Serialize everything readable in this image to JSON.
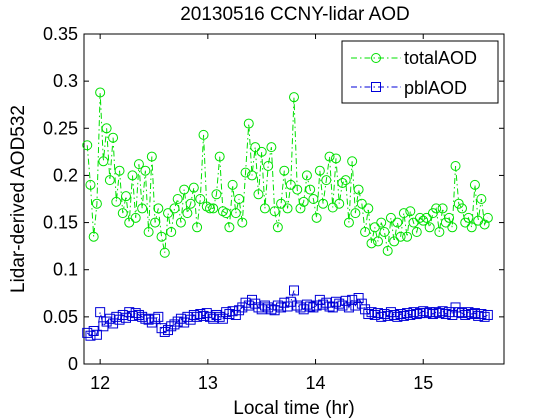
{
  "chart_data": {
    "type": "line",
    "title": "20130516 CCNY-lidar AOD",
    "xlabel": "Local time (hr)",
    "ylabel": "Lidar-derived AOD532",
    "xlim": [
      11.85,
      15.75
    ],
    "ylim": [
      0,
      0.35
    ],
    "x_ticks": [
      12,
      13,
      14,
      15
    ],
    "x_tick_labels": [
      "12",
      "13",
      "14",
      "15"
    ],
    "y_ticks": [
      0,
      0.05,
      0.1,
      0.15,
      0.2,
      0.25,
      0.3,
      0.35
    ],
    "y_tick_labels": [
      "0",
      "0.05",
      "0.1",
      "0.15",
      "0.2",
      "0.25",
      "0.3",
      "0.35"
    ],
    "grid": false,
    "legend_position": "top-right",
    "series": [
      {
        "name": "totalAOD",
        "color": "#00e000",
        "marker": "circle",
        "line_style": "dash-dot",
        "x": [
          11.88,
          11.91,
          11.94,
          11.97,
          12.0,
          12.03,
          12.06,
          12.09,
          12.12,
          12.15,
          12.18,
          12.21,
          12.24,
          12.27,
          12.3,
          12.33,
          12.36,
          12.39,
          12.42,
          12.45,
          12.48,
          12.51,
          12.54,
          12.57,
          12.6,
          12.63,
          12.66,
          12.69,
          12.72,
          12.75,
          12.78,
          12.81,
          12.84,
          12.87,
          12.9,
          12.93,
          12.96,
          12.99,
          13.02,
          13.05,
          13.08,
          13.11,
          13.14,
          13.17,
          13.2,
          13.23,
          13.26,
          13.29,
          13.32,
          13.35,
          13.38,
          13.41,
          13.44,
          13.47,
          13.5,
          13.53,
          13.56,
          13.59,
          13.62,
          13.65,
          13.68,
          13.71,
          13.74,
          13.77,
          13.8,
          13.83,
          13.86,
          13.89,
          13.92,
          13.95,
          13.98,
          14.01,
          14.04,
          14.07,
          14.1,
          14.13,
          14.16,
          14.19,
          14.22,
          14.25,
          14.28,
          14.31,
          14.34,
          14.37,
          14.4,
          14.43,
          14.46,
          14.49,
          14.52,
          14.55,
          14.58,
          14.61,
          14.64,
          14.67,
          14.7,
          14.73,
          14.76,
          14.79,
          14.82,
          14.85,
          14.88,
          14.91,
          14.94,
          14.97,
          15.0,
          15.03,
          15.06,
          15.09,
          15.12,
          15.15,
          15.18,
          15.21,
          15.24,
          15.27,
          15.3,
          15.33,
          15.36,
          15.39,
          15.42,
          15.45,
          15.48,
          15.51,
          15.54,
          15.57,
          15.6
        ],
        "values": [
          0.232,
          0.19,
          0.135,
          0.17,
          0.288,
          0.215,
          0.25,
          0.195,
          0.24,
          0.172,
          0.205,
          0.16,
          0.178,
          0.15,
          0.2,
          0.155,
          0.212,
          0.165,
          0.205,
          0.14,
          0.22,
          0.15,
          0.165,
          0.135,
          0.118,
          0.16,
          0.14,
          0.165,
          0.175,
          0.15,
          0.185,
          0.16,
          0.17,
          0.187,
          0.145,
          0.175,
          0.243,
          0.167,
          0.165,
          0.165,
          0.18,
          0.22,
          0.162,
          0.16,
          0.145,
          0.19,
          0.16,
          0.175,
          0.15,
          0.203,
          0.255,
          0.2,
          0.23,
          0.18,
          0.225,
          0.165,
          0.21,
          0.23,
          0.162,
          0.145,
          0.17,
          0.205,
          0.165,
          0.19,
          0.283,
          0.185,
          0.165,
          0.172,
          0.2,
          0.185,
          0.175,
          0.155,
          0.205,
          0.17,
          0.195,
          0.22,
          0.166,
          0.218,
          0.17,
          0.192,
          0.195,
          0.15,
          0.215,
          0.16,
          0.185,
          0.17,
          0.14,
          0.165,
          0.128,
          0.145,
          0.13,
          0.15,
          0.14,
          0.12,
          0.155,
          0.13,
          0.15,
          0.135,
          0.16,
          0.135,
          0.162,
          0.15,
          0.14,
          0.155,
          0.152,
          0.155,
          0.145,
          0.16,
          0.165,
          0.14,
          0.165,
          0.15,
          0.155,
          0.145,
          0.21,
          0.17,
          0.165,
          0.15,
          0.155,
          0.145,
          0.19,
          0.152,
          0.175,
          0.148,
          0.155
        ]
      },
      {
        "name": "pblAOD",
        "color": "#0000d8",
        "marker": "square",
        "line_style": "dash-dot",
        "x": [
          11.88,
          11.91,
          11.94,
          11.97,
          12.0,
          12.03,
          12.06,
          12.09,
          12.12,
          12.15,
          12.18,
          12.21,
          12.24,
          12.27,
          12.3,
          12.33,
          12.36,
          12.39,
          12.42,
          12.45,
          12.48,
          12.51,
          12.54,
          12.57,
          12.6,
          12.63,
          12.66,
          12.69,
          12.72,
          12.75,
          12.78,
          12.81,
          12.84,
          12.87,
          12.9,
          12.93,
          12.96,
          12.99,
          13.02,
          13.05,
          13.08,
          13.11,
          13.14,
          13.17,
          13.2,
          13.23,
          13.26,
          13.29,
          13.32,
          13.35,
          13.38,
          13.41,
          13.44,
          13.47,
          13.5,
          13.53,
          13.56,
          13.59,
          13.62,
          13.65,
          13.68,
          13.71,
          13.74,
          13.77,
          13.8,
          13.83,
          13.86,
          13.89,
          13.92,
          13.95,
          13.98,
          14.01,
          14.04,
          14.07,
          14.1,
          14.13,
          14.16,
          14.19,
          14.22,
          14.25,
          14.28,
          14.31,
          14.34,
          14.37,
          14.4,
          14.43,
          14.46,
          14.49,
          14.52,
          14.55,
          14.58,
          14.61,
          14.64,
          14.67,
          14.7,
          14.73,
          14.76,
          14.79,
          14.82,
          14.85,
          14.88,
          14.91,
          14.94,
          14.97,
          15.0,
          15.03,
          15.06,
          15.09,
          15.12,
          15.15,
          15.18,
          15.21,
          15.24,
          15.27,
          15.3,
          15.33,
          15.36,
          15.39,
          15.42,
          15.45,
          15.48,
          15.51,
          15.54,
          15.57,
          15.6
        ],
        "values": [
          0.033,
          0.03,
          0.035,
          0.031,
          0.055,
          0.04,
          0.045,
          0.048,
          0.043,
          0.05,
          0.047,
          0.052,
          0.049,
          0.055,
          0.051,
          0.054,
          0.052,
          0.05,
          0.048,
          0.047,
          0.044,
          0.048,
          0.05,
          0.038,
          0.034,
          0.036,
          0.04,
          0.042,
          0.045,
          0.048,
          0.044,
          0.05,
          0.047,
          0.052,
          0.05,
          0.053,
          0.051,
          0.054,
          0.05,
          0.048,
          0.052,
          0.05,
          0.048,
          0.055,
          0.053,
          0.056,
          0.052,
          0.057,
          0.06,
          0.065,
          0.062,
          0.068,
          0.064,
          0.06,
          0.058,
          0.062,
          0.06,
          0.058,
          0.057,
          0.062,
          0.06,
          0.065,
          0.061,
          0.066,
          0.078,
          0.062,
          0.06,
          0.058,
          0.063,
          0.061,
          0.06,
          0.062,
          0.068,
          0.063,
          0.065,
          0.061,
          0.06,
          0.066,
          0.064,
          0.062,
          0.067,
          0.06,
          0.068,
          0.062,
          0.07,
          0.064,
          0.058,
          0.053,
          0.055,
          0.052,
          0.054,
          0.05,
          0.053,
          0.051,
          0.055,
          0.052,
          0.05,
          0.053,
          0.051,
          0.054,
          0.052,
          0.055,
          0.053,
          0.054,
          0.056,
          0.054,
          0.055,
          0.053,
          0.055,
          0.054,
          0.056,
          0.053,
          0.055,
          0.052,
          0.06,
          0.055,
          0.054,
          0.052,
          0.055,
          0.053,
          0.054,
          0.051,
          0.053,
          0.05,
          0.052
        ]
      }
    ]
  }
}
